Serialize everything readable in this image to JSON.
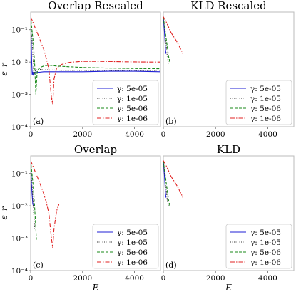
{
  "figure": {
    "shared_y_label": "ε_r",
    "shared_x_label": "E"
  },
  "legend_labels": [
    "γ: 5e-05",
    "γ: 1e-05",
    "γ: 5e-06",
    "γ: 1e-06"
  ],
  "series_style": [
    {
      "color": "#1f1fd6",
      "dash": "none"
    },
    {
      "color": "#333333",
      "dash": "1,1.5"
    },
    {
      "color": "#1a8a1a",
      "dash": "4,2"
    },
    {
      "color": "#e02020",
      "dash": "6,2,1.5,2"
    }
  ],
  "chart_data": [
    {
      "type": "line",
      "title": "Overlap Rescaled",
      "tag": "(a)",
      "xlabel": "",
      "ylabel": "ε_r",
      "yscale": "log",
      "xlim": [
        0,
        5000
      ],
      "ylim": [
        0.0001,
        0.35
      ],
      "xticks": [
        0,
        2000,
        4000
      ],
      "yticks": [
        {
          "v": 0.0001,
          "label": "10⁻⁴"
        },
        {
          "v": 0.001,
          "label": "10⁻³"
        },
        {
          "v": 0.01,
          "label": "10⁻²"
        },
        {
          "v": 0.1,
          "label": "10⁻¹"
        }
      ],
      "legend": "lower-right",
      "series": [
        {
          "name": "γ: 5e-05",
          "x": [
            0,
            20,
            40,
            60,
            80,
            100,
            200,
            300,
            500,
            1000,
            2000,
            3000,
            4000,
            5000
          ],
          "y": [
            0.25,
            0.05,
            0.01,
            0.004,
            0.005,
            0.004,
            0.005,
            0.0048,
            0.005,
            0.005,
            0.005,
            0.0052,
            0.0052,
            0.005
          ]
        },
        {
          "name": "γ: 1e-05",
          "x": [
            0,
            50,
            100,
            120,
            150,
            200,
            300,
            500,
            1000,
            2000,
            3000,
            4000,
            5000
          ],
          "y": [
            0.25,
            0.05,
            0.01,
            0.004,
            0.005,
            0.0055,
            0.006,
            0.0058,
            0.0056,
            0.0055,
            0.0055,
            0.0055,
            0.0055
          ]
        },
        {
          "name": "γ: 5e-06",
          "x": [
            0,
            50,
            100,
            150,
            200,
            250,
            300,
            400,
            500,
            700,
            1000,
            2000,
            3000,
            4000,
            5000
          ],
          "y": [
            0.25,
            0.1,
            0.04,
            0.01,
            0.001,
            0.005,
            0.006,
            0.007,
            0.0075,
            0.008,
            0.0075,
            0.0068,
            0.0065,
            0.0063,
            0.0062
          ]
        },
        {
          "name": "γ: 1e-06",
          "x": [
            0,
            100,
            200,
            300,
            400,
            500,
            600,
            700,
            800,
            850,
            900,
            1000,
            1200,
            1500,
            2000,
            2500,
            3000,
            3500,
            4000,
            4500,
            5000
          ],
          "y": [
            0.25,
            0.16,
            0.1,
            0.065,
            0.04,
            0.025,
            0.013,
            0.006,
            0.0008,
            0.0005,
            0.003,
            0.0065,
            0.0085,
            0.0098,
            0.0105,
            0.0105,
            0.0104,
            0.0102,
            0.0101,
            0.01,
            0.01
          ]
        }
      ]
    },
    {
      "type": "line",
      "title": "KLD Rescaled",
      "tag": "(b)",
      "xlabel": "",
      "ylabel": "",
      "yscale": "log",
      "xlim": [
        0,
        5000
      ],
      "ylim": [
        0.0001,
        0.35
      ],
      "xticks": [
        0,
        2000,
        4000
      ],
      "yticks": [],
      "legend": "lower-right",
      "series": [
        {
          "name": "γ: 5e-05",
          "x": [
            0,
            30,
            60,
            80,
            100
          ],
          "y": [
            0.25,
            0.12,
            0.05,
            0.025,
            0.018
          ]
        },
        {
          "name": "γ: 1e-05",
          "x": [
            0,
            50,
            100,
            150,
            200
          ],
          "y": [
            0.25,
            0.1,
            0.04,
            0.015,
            0.009
          ]
        },
        {
          "name": "γ: 5e-06",
          "x": [
            0,
            50,
            100,
            150,
            200,
            250
          ],
          "y": [
            0.25,
            0.12,
            0.06,
            0.03,
            0.015,
            0.01
          ]
        },
        {
          "name": "γ: 1e-06",
          "x": [
            0,
            100,
            200,
            300,
            400,
            500,
            600,
            700,
            750
          ],
          "y": [
            0.25,
            0.18,
            0.12,
            0.08,
            0.06,
            0.045,
            0.032,
            0.022,
            0.018
          ]
        }
      ]
    },
    {
      "type": "line",
      "title": "Overlap",
      "tag": "(c)",
      "xlabel": "E",
      "ylabel": "ε_r",
      "yscale": "log",
      "xlim": [
        0,
        5000
      ],
      "ylim": [
        0.0001,
        0.35
      ],
      "xticks": [
        0,
        2000,
        4000
      ],
      "yticks": [
        {
          "v": 0.0001,
          "label": "10⁻⁴"
        },
        {
          "v": 0.001,
          "label": "10⁻³"
        },
        {
          "v": 0.01,
          "label": "10⁻²"
        },
        {
          "v": 0.1,
          "label": "10⁻¹"
        }
      ],
      "legend": "lower-right",
      "series": [
        {
          "name": "γ: 5e-05",
          "x": [
            0,
            30,
            60,
            80,
            100
          ],
          "y": [
            0.25,
            0.05,
            0.02,
            0.012,
            0.01
          ]
        },
        {
          "name": "γ: 1e-05",
          "x": [
            0,
            50,
            100,
            150
          ],
          "y": [
            0.25,
            0.05,
            0.01,
            0.002
          ]
        },
        {
          "name": "γ: 5e-06",
          "x": [
            0,
            50,
            100,
            150,
            200,
            220
          ],
          "y": [
            0.25,
            0.1,
            0.04,
            0.01,
            0.002,
            0.0009
          ]
        },
        {
          "name": "γ: 1e-06",
          "x": [
            0,
            100,
            200,
            300,
            400,
            500,
            600,
            700,
            800,
            850,
            900,
            1000,
            1100
          ],
          "y": [
            0.25,
            0.16,
            0.1,
            0.065,
            0.04,
            0.024,
            0.013,
            0.006,
            0.001,
            0.0005,
            0.002,
            0.007,
            0.012
          ]
        }
      ]
    },
    {
      "type": "line",
      "title": "KLD",
      "tag": "(d)",
      "xlabel": "E",
      "ylabel": "",
      "yscale": "log",
      "xlim": [
        0,
        5000
      ],
      "ylim": [
        0.0001,
        0.35
      ],
      "xticks": [
        0,
        2000,
        4000
      ],
      "yticks": [],
      "legend": "lower-right",
      "series": [
        {
          "name": "γ: 5e-05",
          "x": [
            0,
            30,
            60,
            80,
            100
          ],
          "y": [
            0.25,
            0.12,
            0.05,
            0.025,
            0.018
          ]
        },
        {
          "name": "γ: 1e-05",
          "x": [
            0,
            50,
            100,
            150,
            200
          ],
          "y": [
            0.25,
            0.1,
            0.04,
            0.015,
            0.01
          ]
        },
        {
          "name": "γ: 5e-06",
          "x": [
            0,
            50,
            100,
            150,
            200,
            250
          ],
          "y": [
            0.25,
            0.12,
            0.06,
            0.03,
            0.015,
            0.01
          ]
        },
        {
          "name": "γ: 1e-06",
          "x": [
            0,
            100,
            200,
            300,
            400,
            500,
            600,
            700,
            750
          ],
          "y": [
            0.25,
            0.18,
            0.12,
            0.08,
            0.06,
            0.045,
            0.032,
            0.022,
            0.018
          ]
        }
      ]
    }
  ]
}
